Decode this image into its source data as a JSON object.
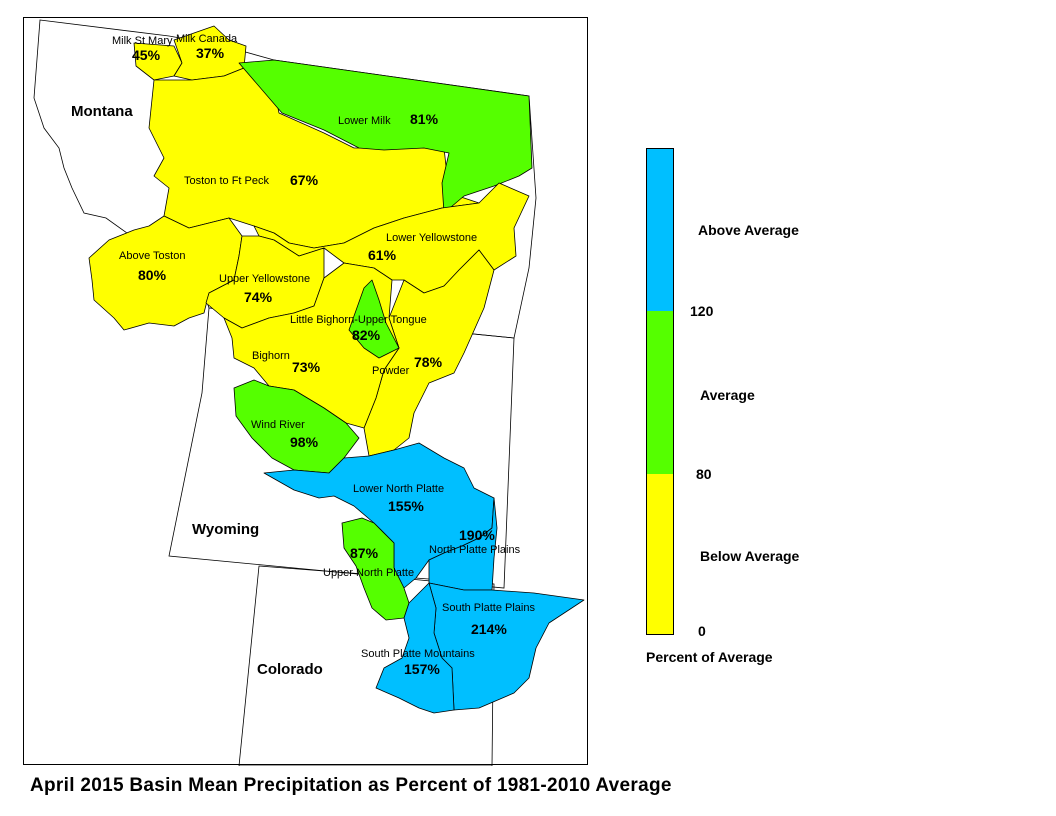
{
  "title": "April 2015 Basin Mean Precipitation as Percent of 1981-2010 Average",
  "legend": {
    "title": "Percent of Average",
    "categories": [
      {
        "label": "Above Average",
        "color": "#00bfff",
        "range": "above 120"
      },
      {
        "label": "Average",
        "color": "#55ff00",
        "range": "80-120"
      },
      {
        "label": "Below Average",
        "color": "#ffff00",
        "range": "0-80"
      }
    ],
    "ticks": [
      "120",
      "80",
      "0"
    ]
  },
  "states": [
    "Montana",
    "Wyoming",
    "Colorado"
  ],
  "basins": [
    {
      "name": "Milk St Mary",
      "pct": "45%",
      "category": "below"
    },
    {
      "name": "Milk Canada",
      "pct": "37%",
      "category": "below"
    },
    {
      "name": "Lower Milk",
      "pct": "81%",
      "category": "average"
    },
    {
      "name": "Toston to Ft Peck",
      "pct": "67%",
      "category": "below"
    },
    {
      "name": "Above Toston",
      "pct": "80%",
      "category": "below"
    },
    {
      "name": "Lower Yellowstone",
      "pct": "61%",
      "category": "below"
    },
    {
      "name": "Upper Yellowstone",
      "pct": "74%",
      "category": "below"
    },
    {
      "name": "Little Bighorn-Upper Tongue",
      "pct": "82%",
      "category": "average"
    },
    {
      "name": "Bighorn",
      "pct": "73%",
      "category": "below"
    },
    {
      "name": "Powder",
      "pct": "78%",
      "category": "below"
    },
    {
      "name": "Wind River",
      "pct": "98%",
      "category": "average"
    },
    {
      "name": "Lower North Platte",
      "pct": "155%",
      "category": "above"
    },
    {
      "name": "North Platte Plains",
      "pct": "190%",
      "category": "above"
    },
    {
      "name": "Upper North Platte",
      "pct": "87%",
      "category": "average"
    },
    {
      "name": "South Platte Plains",
      "pct": "214%",
      "category": "above"
    },
    {
      "name": "South Platte Mountains",
      "pct": "157%",
      "category": "above"
    }
  ]
}
